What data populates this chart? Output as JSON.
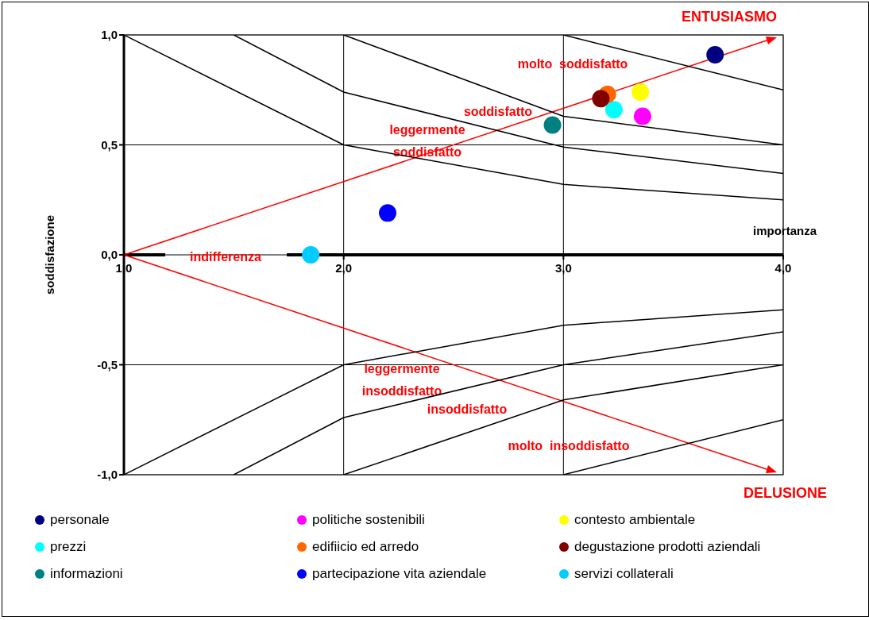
{
  "chart_data": {
    "type": "scatter",
    "xlabel": "importanza",
    "ylabel": "soddisfazione",
    "xlim": [
      1,
      4
    ],
    "ylim": [
      -1,
      1
    ],
    "xticks": [
      {
        "value": 1,
        "label": "1,0"
      },
      {
        "value": 2,
        "label": "2,0"
      },
      {
        "value": 3,
        "label": "3,0"
      },
      {
        "value": 4,
        "label": "4,0"
      }
    ],
    "yticks": [
      {
        "value": -1,
        "label": "-1,0"
      },
      {
        "value": -0.5,
        "label": "-0,5"
      },
      {
        "value": 0,
        "label": "0,0"
      },
      {
        "value": 0.5,
        "label": "0,5"
      },
      {
        "value": 1,
        "label": "1,0"
      }
    ],
    "grid": true,
    "legend": "bottom",
    "marker": "circle",
    "annotations": [
      "ENTUSIASMO",
      "DELUSIONE",
      "molto  soddisfatto",
      "soddisfatto",
      "leggermente soddisfatto",
      "indifferenza",
      "leggermente insoddisfatto",
      "insoddisfatto",
      "molto  insoddisfatto"
    ],
    "series": [
      {
        "name": "personale",
        "color": "#000080",
        "x": [
          3.69
        ],
        "values": [
          0.91
        ]
      },
      {
        "name": "politiche sostenibili",
        "color": "#ff00ff",
        "x": [
          3.36
        ],
        "values": [
          0.63
        ]
      },
      {
        "name": "contesto ambientale",
        "color": "#ffff00",
        "x": [
          3.35
        ],
        "values": [
          0.74
        ]
      },
      {
        "name": "prezzi",
        "color": "#00ffff",
        "x": [
          3.23
        ],
        "values": [
          0.66
        ]
      },
      {
        "name": "edifiicio ed arredo",
        "color": "#ff6600",
        "x": [
          3.2
        ],
        "values": [
          0.73
        ]
      },
      {
        "name": "degustazione prodotti aziendali",
        "color": "#800000",
        "x": [
          3.17
        ],
        "values": [
          0.71
        ]
      },
      {
        "name": "informazioni",
        "color": "#008080",
        "x": [
          2.95
        ],
        "values": [
          0.59
        ]
      },
      {
        "name": "partecipazione vita aziendale",
        "color": "#0000ff",
        "x": [
          2.2
        ],
        "values": [
          0.19
        ]
      },
      {
        "name": "servizi collaterali",
        "color": "#00ccff",
        "x": [
          1.85
        ],
        "values": [
          0.0
        ]
      },
      {
        "type": "line",
        "marker": "none",
        "color": "#000000",
        "x": [
          1,
          2,
          3,
          4
        ],
        "values": [
          1,
          0.5,
          0.32,
          0.25
        ]
      },
      {
        "type": "line",
        "marker": "none",
        "color": "#000000",
        "x": [
          1.5,
          2,
          3,
          4
        ],
        "values": [
          1,
          0.74,
          0.49,
          0.37
        ]
      },
      {
        "type": "line",
        "marker": "none",
        "color": "#000000",
        "x": [
          2,
          3,
          4
        ],
        "values": [
          1,
          0.63,
          0.5
        ]
      },
      {
        "type": "line",
        "marker": "none",
        "color": "#000000",
        "x": [
          3,
          4
        ],
        "values": [
          1,
          0.75
        ]
      },
      {
        "type": "line",
        "marker": "none",
        "color": "#000000",
        "x": [
          1,
          2,
          3,
          4
        ],
        "values": [
          -1,
          -0.5,
          -0.32,
          -0.25
        ]
      },
      {
        "type": "line",
        "marker": "none",
        "color": "#000000",
        "x": [
          1.5,
          2,
          3,
          4
        ],
        "values": [
          -1,
          -0.74,
          -0.5,
          -0.35
        ]
      },
      {
        "type": "line",
        "marker": "none",
        "color": "#000000",
        "x": [
          2,
          3,
          4
        ],
        "values": [
          -1,
          -0.66,
          -0.5
        ]
      },
      {
        "type": "line",
        "marker": "none",
        "color": "#000000",
        "x": [
          3,
          4
        ],
        "values": [
          -1,
          -0.75
        ]
      }
    ]
  }
}
